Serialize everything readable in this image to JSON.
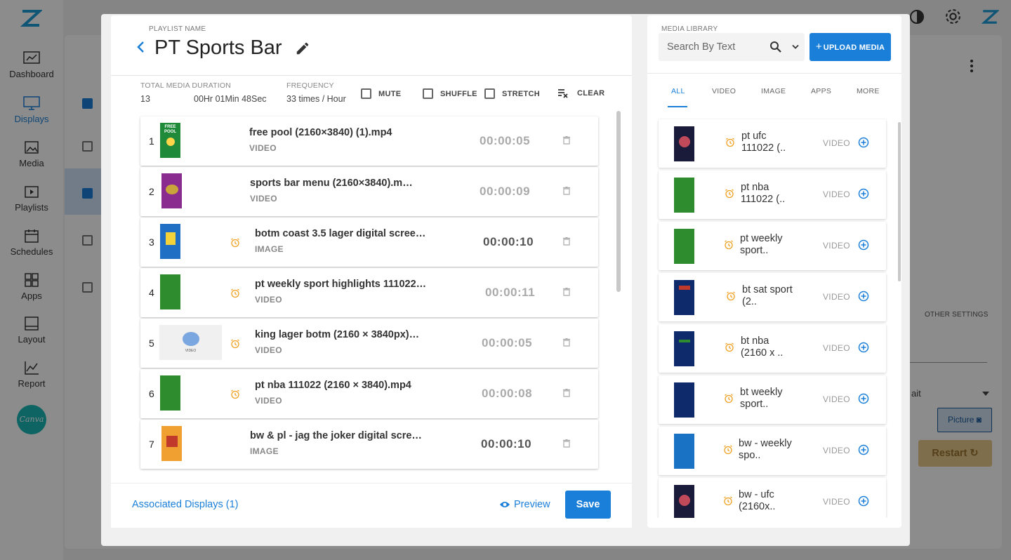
{
  "background": {
    "sidebar_items": [
      {
        "label": "Dashboard"
      },
      {
        "label": "Displays"
      },
      {
        "label": "Media"
      },
      {
        "label": "Playlists"
      },
      {
        "label": "Schedules"
      },
      {
        "label": "Apps"
      },
      {
        "label": "Layout"
      },
      {
        "label": "Report"
      }
    ],
    "canva_label": "Canva",
    "other_settings_tab": "OTHER SETTINGS",
    "orientation_partial": "ait",
    "picture_button": "Picture",
    "restart_button": "Restart"
  },
  "playlist": {
    "name_label": "PLAYLIST NAME",
    "name": "PT Sports Bar",
    "stats": {
      "total_label": "TOTAL MEDIA DURATION",
      "count": "13",
      "duration": "00Hr 01Min 48Sec",
      "frequency_label": "FREQUENCY",
      "frequency": "33 times / Hour"
    },
    "options": {
      "mute": "MUTE",
      "shuffle": "SHUFFLE",
      "stretch": "STRETCH",
      "clear": "CLEAR"
    },
    "items": [
      {
        "num": "1",
        "name": "free pool (2160×3840) (1).mp4",
        "type": "VIDEO",
        "duration": "00:00:05"
      },
      {
        "num": "2",
        "name": "sports bar menu (2160×3840).m…",
        "type": "VIDEO",
        "duration": "00:00:09"
      },
      {
        "num": "3",
        "name": "botm coast 3.5 lager digital scree…",
        "type": "IMAGE",
        "duration": "00:00:10"
      },
      {
        "num": "4",
        "name": "pt weekly sport highlights 111022…",
        "type": "VIDEO",
        "duration": "00:00:11"
      },
      {
        "num": "5",
        "name": "king lager botm (2160 × 3840px)…",
        "type": "VIDEO",
        "duration": "00:00:05"
      },
      {
        "num": "6",
        "name": "pt nba 111022 (2160 × 3840).mp4",
        "type": "VIDEO",
        "duration": "00:00:08"
      },
      {
        "num": "7",
        "name": "bw & pl - jag the joker digital scre…",
        "type": "IMAGE",
        "duration": "00:00:10"
      }
    ],
    "thumb_text": {
      "free_pool": "FREE POOL",
      "video_thumb": "VIDEO"
    },
    "footer": {
      "associated": "Associated Displays (1)",
      "preview": "Preview",
      "save": "Save"
    }
  },
  "library": {
    "label": "MEDIA LIBRARY",
    "search_placeholder": "Search By Text",
    "upload_label": "UPLOAD MEDIA",
    "tabs": [
      "ALL",
      "VIDEO",
      "IMAGE",
      "APPS",
      "MORE"
    ],
    "items": [
      {
        "line1": "pt ufc",
        "line2": "111022 (..",
        "type": "VIDEO"
      },
      {
        "line1": "pt nba",
        "line2": "111022 (..",
        "type": "VIDEO"
      },
      {
        "line1": "pt weekly",
        "line2": "sport..",
        "type": "VIDEO"
      },
      {
        "line1": "bt sat sport",
        "line2": "(2..",
        "type": "VIDEO"
      },
      {
        "line1": "bt nba",
        "line2": "(2160 x ..",
        "type": "VIDEO"
      },
      {
        "line1": "bt weekly",
        "line2": "sport..",
        "type": "VIDEO"
      },
      {
        "line1": "bw - weekly",
        "line2": "spo..",
        "type": "VIDEO"
      },
      {
        "line1": "bw - ufc",
        "line2": "(2160x..",
        "type": "VIDEO"
      }
    ]
  },
  "colors": {
    "accent": "#1a7fd8",
    "alarm": "#f0a020",
    "green_thumb": "#2e8b2e",
    "navy_thumb": "#0e2a6b"
  }
}
